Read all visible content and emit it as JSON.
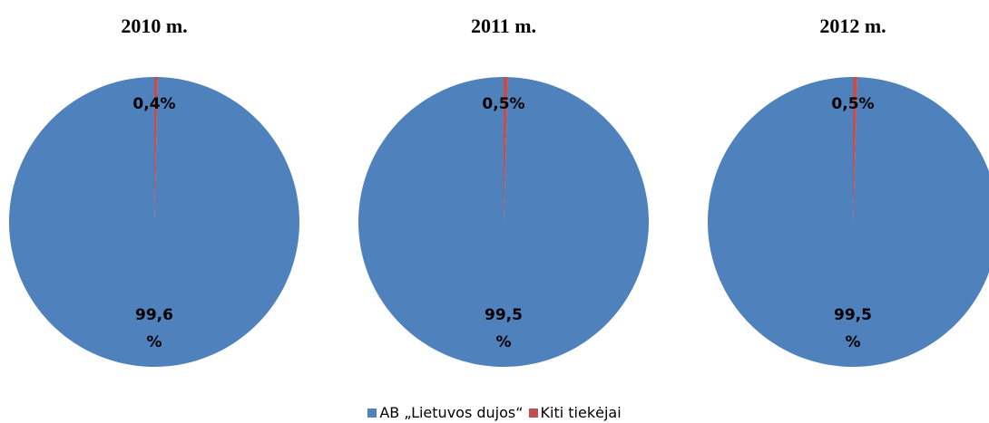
{
  "legend": {
    "labels": [
      "AB „Lietuvos dujos“",
      "Kiti tiekėjai"
    ],
    "colors": [
      "#4f81bd",
      "#c0504d"
    ]
  },
  "chart_data": [
    {
      "type": "pie",
      "title": "2010 m.",
      "values": [
        99.6,
        0.4
      ],
      "value_labels": [
        "99,6 %",
        "0,4%"
      ]
    },
    {
      "type": "pie",
      "title": "2011 m.",
      "values": [
        99.5,
        0.5
      ],
      "value_labels": [
        "99,5 %",
        "0,5%"
      ]
    },
    {
      "type": "pie",
      "title": "2012 m.",
      "values": [
        99.5,
        0.5
      ],
      "value_labels": [
        "99,5 %",
        "0,5%"
      ]
    }
  ]
}
